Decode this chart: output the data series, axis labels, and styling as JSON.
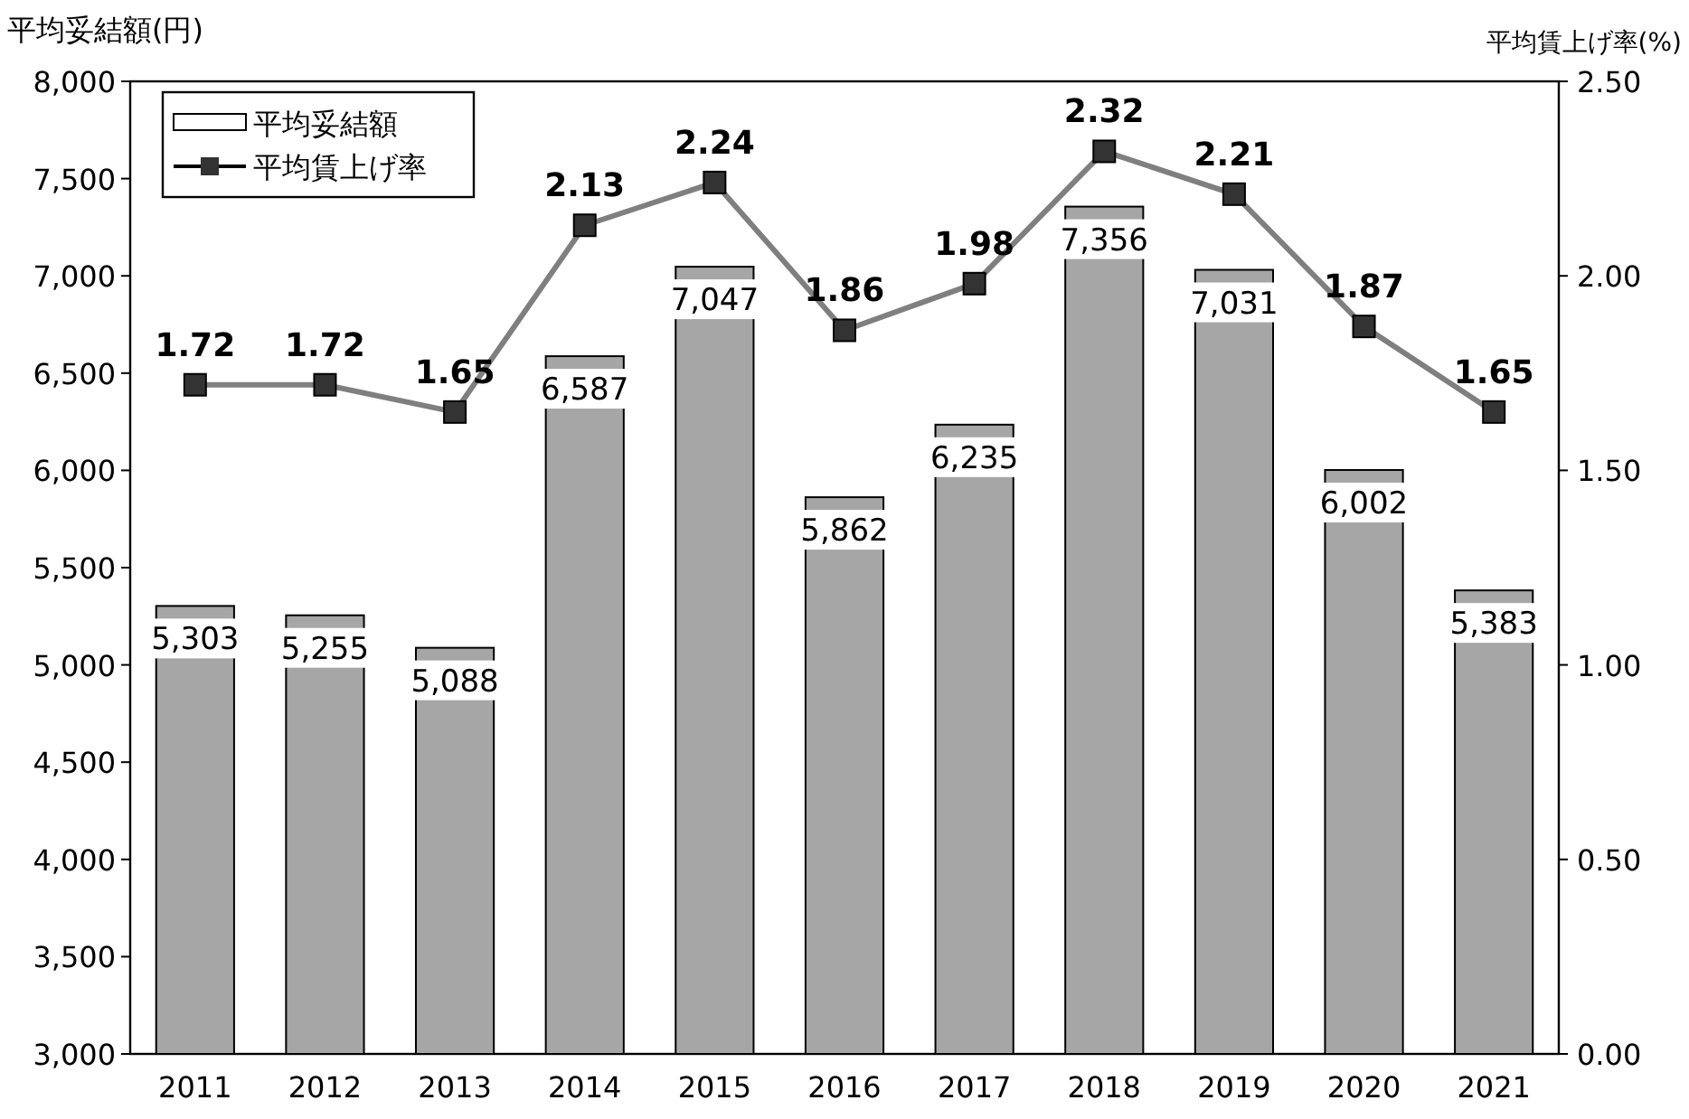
{
  "chart_data": {
    "type": "bar",
    "ylabel": "平均妥結額(円)",
    "y2label": "平均賃上げ率(%)",
    "categories": [
      "2011",
      "2012",
      "2013",
      "2014",
      "2015",
      "2016",
      "2017",
      "2018",
      "2019",
      "2020",
      "2021"
    ],
    "series": [
      {
        "name": "平均妥結額",
        "color": "#a6a6a6",
        "values": [
          5303,
          5255,
          5088,
          6587,
          7047,
          5862,
          6235,
          7356,
          7031,
          6002,
          5383
        ],
        "value_labels": [
          "5,303",
          "5,255",
          "5,088",
          "6,587",
          "7,047",
          "5,862",
          "6,235",
          "7,356",
          "7,031",
          "6,002",
          "5,383"
        ]
      },
      {
        "name": "平均賃上げ率",
        "type": "line",
        "axis": "y2",
        "color": "#7f7f7f",
        "marker": "square",
        "values": [
          1.72,
          1.72,
          1.65,
          2.13,
          2.24,
          1.86,
          1.98,
          2.32,
          2.21,
          1.87,
          1.65
        ],
        "value_labels": [
          "1.72",
          "1.72",
          "1.65",
          "2.13",
          "2.24",
          "1.86",
          "1.98",
          "2.32",
          "2.21",
          "1.87",
          "1.65"
        ]
      }
    ],
    "ylim": [
      3000,
      8000
    ],
    "yticks": [
      {
        "value": 3000,
        "label": "3,000"
      },
      {
        "value": 3500,
        "label": "3,500"
      },
      {
        "value": 4000,
        "label": "4,000"
      },
      {
        "value": 4500,
        "label": "4,500"
      },
      {
        "value": 5000,
        "label": "5,000"
      },
      {
        "value": 5500,
        "label": "5,500"
      },
      {
        "value": 6000,
        "label": "6,000"
      },
      {
        "value": 6500,
        "label": "6,500"
      },
      {
        "value": 7000,
        "label": "7,000"
      },
      {
        "value": 7500,
        "label": "7,500"
      },
      {
        "value": 8000,
        "label": "8,000"
      }
    ],
    "y2lim": [
      0,
      2.5
    ],
    "y2ticks": [
      {
        "value": 0,
        "label": "0.00"
      },
      {
        "value": 0.5,
        "label": "0.50"
      },
      {
        "value": 1,
        "label": "1.00"
      },
      {
        "value": 1.5,
        "label": "1.50"
      },
      {
        "value": 2,
        "label": "2.00"
      },
      {
        "value": 2.5,
        "label": "2.50"
      }
    ],
    "legend": "top left",
    "grid": false
  }
}
